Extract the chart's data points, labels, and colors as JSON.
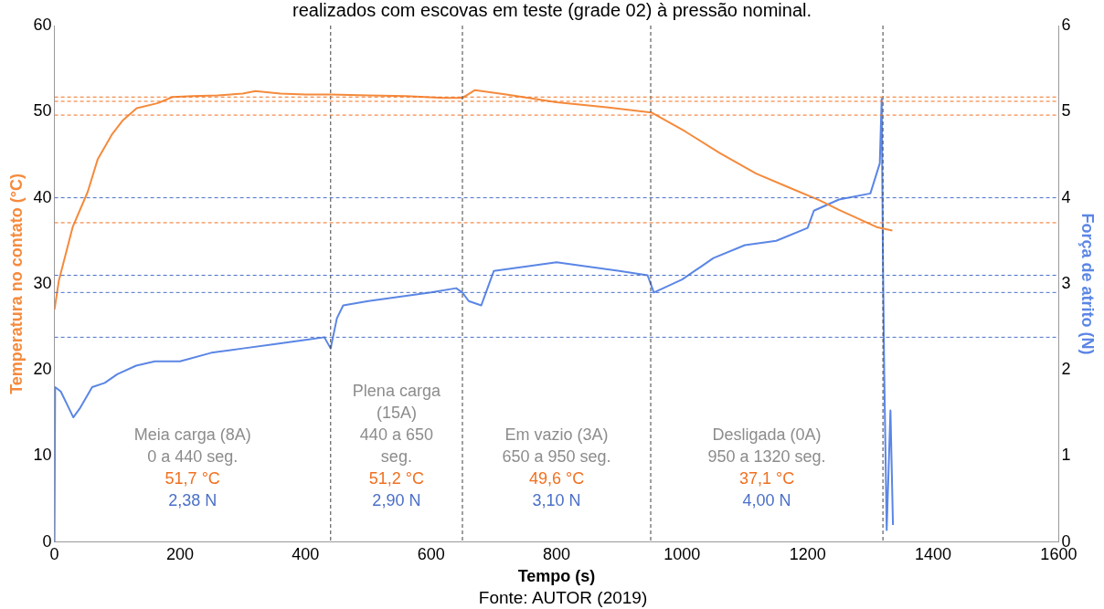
{
  "chart_data": {
    "type": "line",
    "title": "realizados com escovas em teste (grade 02) à pressão nominal.",
    "xlabel": "Tempo (s)",
    "ylabel": "Temperatura no contato (°C)",
    "y2label": "Força de atrito (N)",
    "xlim": [
      0,
      1600
    ],
    "xticks": [
      0,
      200,
      400,
      600,
      800,
      1000,
      1200,
      1400,
      1600
    ],
    "ylim": [
      0,
      60
    ],
    "yticks": [
      0,
      10,
      20,
      30,
      40,
      50,
      60
    ],
    "y2lim": [
      0,
      6
    ],
    "y2ticks": [
      0,
      1,
      2,
      3,
      4,
      5,
      6
    ],
    "grid": false,
    "legend": false,
    "marker": "none",
    "series": [
      {
        "color": "#f58a3c",
        "x": [
          0,
          7,
          29,
          53,
          69,
          92,
          109,
          131,
          165,
          188,
          220,
          260,
          300,
          320,
          360,
          400,
          440,
          500,
          560,
          620,
          650,
          670,
          720,
          800,
          880,
          951,
          1005,
          1060,
          1118,
          1170,
          1219,
          1250,
          1286,
          1310,
          1335
        ],
        "values": [
          27,
          30.4,
          36.6,
          40.7,
          44.5,
          47.4,
          49,
          50.4,
          51,
          51.7,
          51.8,
          51.9,
          52.1,
          52.4,
          52.1,
          52,
          52,
          51.9,
          51.8,
          51.6,
          51.6,
          52.5,
          52,
          51.1,
          50.5,
          49.9,
          47.7,
          45.2,
          42.8,
          41.2,
          39.7,
          38.6,
          37.4,
          36.6,
          36.2
        ]
      },
      {
        "axis": "y2",
        "color": "#5b86e5",
        "x": [
          0,
          1,
          10,
          20,
          30,
          40,
          60,
          80,
          100,
          130,
          160,
          200,
          250,
          300,
          350,
          400,
          430,
          440,
          450,
          460,
          500,
          550,
          600,
          640,
          650,
          660,
          680,
          690,
          700,
          750,
          800,
          850,
          900,
          945,
          955,
          1000,
          1050,
          1100,
          1150,
          1200,
          1210,
          1250,
          1300,
          1315,
          1318,
          1320,
          1322,
          1326,
          1332,
          1336
        ],
        "values": [
          0,
          1.8,
          1.75,
          1.6,
          1.45,
          1.55,
          1.8,
          1.85,
          1.95,
          2.05,
          2.1,
          2.1,
          2.2,
          2.25,
          2.3,
          2.35,
          2.38,
          2.25,
          2.6,
          2.75,
          2.8,
          2.85,
          2.9,
          2.95,
          2.9,
          2.8,
          2.75,
          2.95,
          3.15,
          3.2,
          3.25,
          3.2,
          3.15,
          3.1,
          2.9,
          3.05,
          3.3,
          3.45,
          3.5,
          3.65,
          3.85,
          3.98,
          4.05,
          4.4,
          5.15,
          3.3,
          2,
          0.14,
          1.53,
          0.2
        ]
      }
    ],
    "ref_lines": [
      {
        "axis": "x",
        "value": 440,
        "color": "#404040",
        "line_style": "dashed"
      },
      {
        "axis": "x",
        "value": 650,
        "color": "#404040",
        "line_style": "dashed"
      },
      {
        "axis": "x",
        "value": 950,
        "color": "#404040",
        "line_style": "dashed"
      },
      {
        "axis": "x",
        "value": 1320,
        "color": "#404040",
        "line_style": "dashed"
      },
      {
        "axis": "y",
        "value": 51.7,
        "label": "51,7 °C",
        "color": "#f07020",
        "line_style": "dashed"
      },
      {
        "axis": "y",
        "value": 51.2,
        "label": "51,2 °C",
        "color": "#f07020",
        "line_style": "dashed"
      },
      {
        "axis": "y",
        "value": 49.6,
        "label": "49,6 °C",
        "color": "#f07020",
        "line_style": "dashed"
      },
      {
        "axis": "y",
        "value": 37.1,
        "label": "37,1 °C",
        "color": "#f07020",
        "line_style": "dashed"
      },
      {
        "axis": "y2",
        "value": 2.38,
        "label": "2,38 N",
        "color": "#4a70c8",
        "line_style": "dashed"
      },
      {
        "axis": "y2",
        "value": 2.9,
        "label": "2,90 N",
        "color": "#4a70c8",
        "line_style": "dashed"
      },
      {
        "axis": "y2",
        "value": 3.1,
        "label": "3,10 N",
        "color": "#4a70c8",
        "line_style": "dashed"
      },
      {
        "axis": "y2",
        "value": 4.0,
        "label": "4,00 N",
        "color": "#4a70c8",
        "line_style": "dashed"
      }
    ],
    "annotations": [
      "Meia carga (8A)\n0 a 440 seg.",
      "Plena carga\n(15A)\n440 a 650\nseg.",
      "Em vazio (3A)\n650 a 950 seg.",
      "Desligada (0A)\n950 a 1320 seg.",
      "Fonte: AUTOR (2019)"
    ]
  }
}
